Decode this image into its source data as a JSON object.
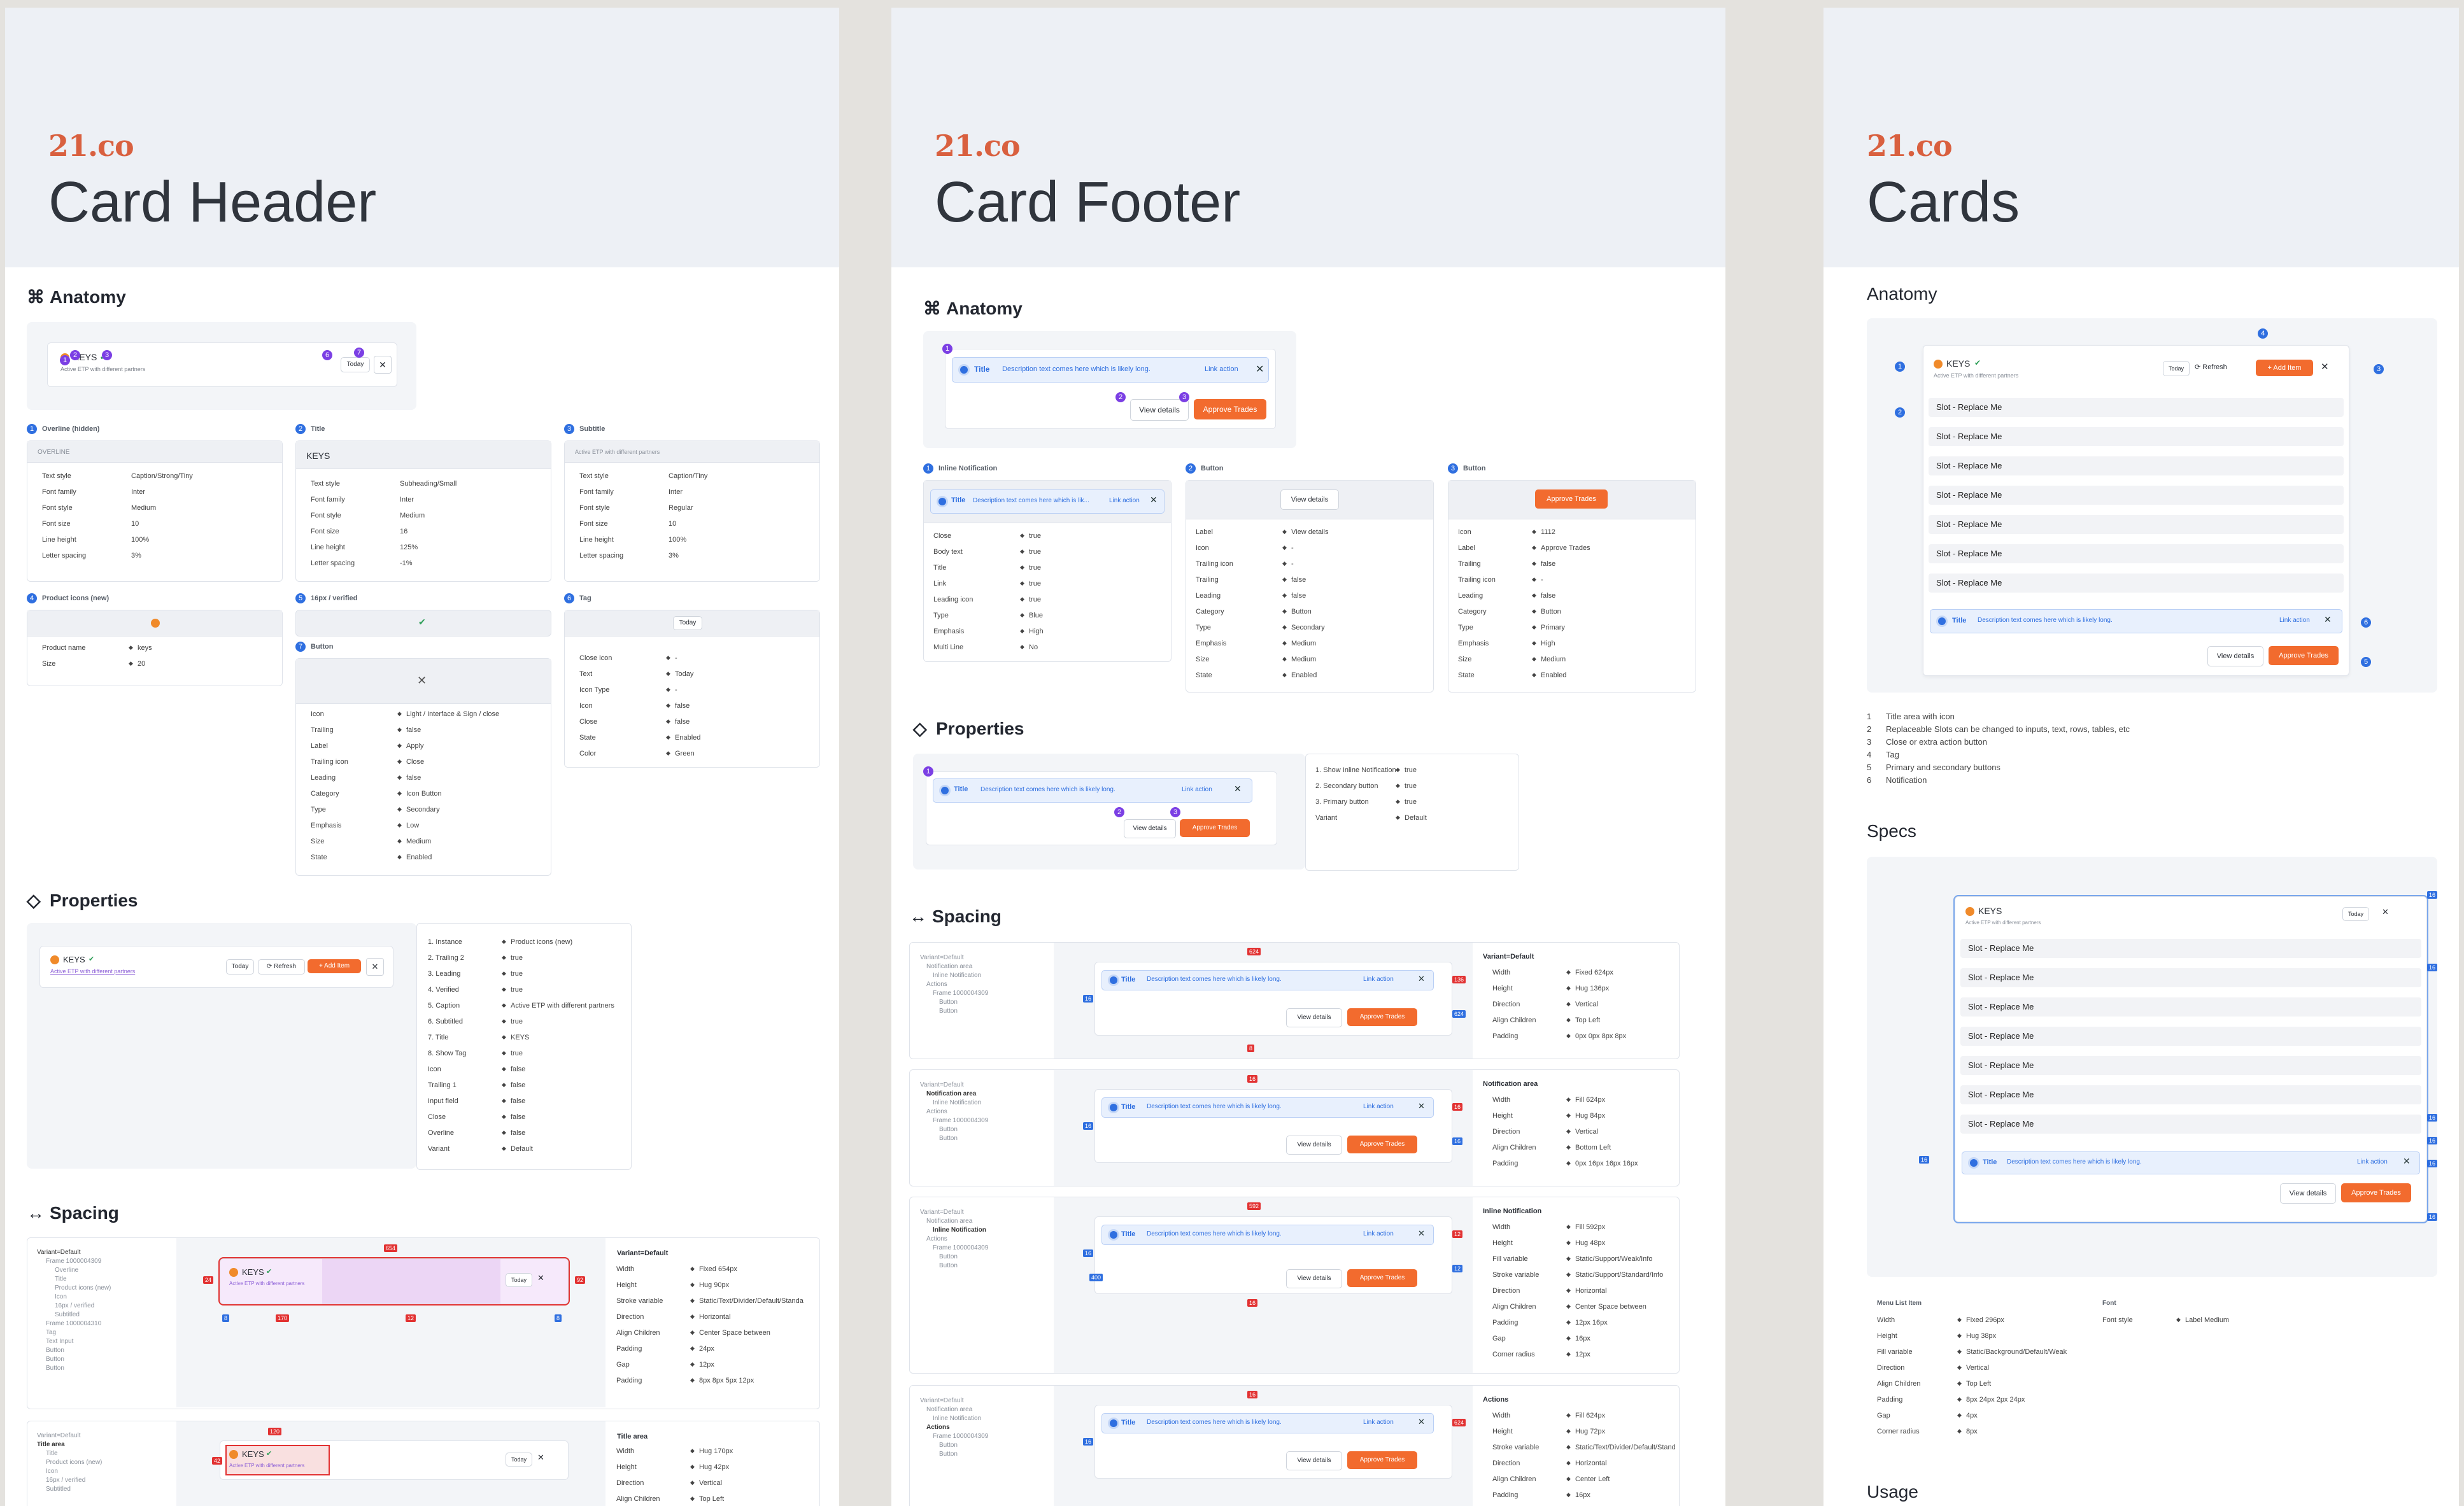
{
  "brand": {
    "logo": "21.co"
  },
  "boards": {
    "header": {
      "title": "Card Header",
      "anatomy": "Anatomy",
      "properties": "Properties",
      "spacing": "Spacing",
      "keys": "KEYS",
      "subtitle": "Active ETP with different partners",
      "today": "Today",
      "refresh": "Refresh",
      "add_item": "+ Add Item",
      "specs": [
        {
          "num": "1",
          "title": "Overline (hidden)",
          "preview": "OVERLINE",
          "rows": [
            [
              "Text style",
              "Caption/Strong/Tiny"
            ],
            [
              "Font family",
              "Inter"
            ],
            [
              "Font style",
              "Medium"
            ],
            [
              "Font size",
              "10"
            ],
            [
              "Line height",
              "100%"
            ],
            [
              "Letter spacing",
              "3%"
            ]
          ]
        },
        {
          "num": "2",
          "title": "Title",
          "preview": "KEYS",
          "rows": [
            [
              "Text style",
              "Subheading/Small"
            ],
            [
              "Font family",
              "Inter"
            ],
            [
              "Font style",
              "Medium"
            ],
            [
              "Font size",
              "16"
            ],
            [
              "Line height",
              "125%"
            ],
            [
              "Letter spacing",
              "-1%"
            ]
          ]
        },
        {
          "num": "3",
          "title": "Subtitle",
          "preview": "Active ETP with different partners",
          "rows": [
            [
              "Text style",
              "Caption/Tiny"
            ],
            [
              "Font family",
              "Inter"
            ],
            [
              "Font style",
              "Regular"
            ],
            [
              "Font size",
              "10"
            ],
            [
              "Line height",
              "100%"
            ],
            [
              "Letter spacing",
              "3%"
            ]
          ]
        }
      ],
      "product_icons": {
        "num": "4",
        "title": "Product icons (new)",
        "rows": [
          [
            "Product name",
            "keys"
          ],
          [
            "Size",
            "20"
          ]
        ]
      },
      "verified": {
        "num": "5",
        "title": "16px / verified"
      },
      "button": {
        "num": "7",
        "title": "Button",
        "rows": [
          [
            "Icon",
            "Light / Interface & Sign / close"
          ],
          [
            "Trailing",
            "false"
          ],
          [
            "Label",
            "Apply"
          ],
          [
            "Trailing icon",
            "Close"
          ],
          [
            "Leading",
            "false"
          ],
          [
            "Category",
            "Icon Button"
          ],
          [
            "Type",
            "Secondary"
          ],
          [
            "Emphasis",
            "Low"
          ],
          [
            "Size",
            "Medium"
          ],
          [
            "State",
            "Enabled"
          ]
        ]
      },
      "tag": {
        "num": "6",
        "title": "Tag",
        "preview": "Today",
        "rows": [
          [
            "Close icon",
            "-"
          ],
          [
            "Text",
            "Today"
          ],
          [
            "Icon Type",
            "-"
          ],
          [
            "Icon",
            "false"
          ],
          [
            "Close",
            "false"
          ],
          [
            "State",
            "Enabled"
          ],
          [
            "Color",
            "Green"
          ]
        ]
      },
      "props": [
        [
          "1. Instance",
          "Product icons (new)"
        ],
        [
          "2. Trailing 2",
          "true"
        ],
        [
          "3. Leading",
          "true"
        ],
        [
          "4. Verified",
          "true"
        ],
        [
          "5. Caption",
          "Active ETP with different partners"
        ],
        [
          "6. Subtitled",
          "true"
        ],
        [
          "7. Title",
          "KEYS"
        ],
        [
          "8. Show Tag",
          "true"
        ],
        [
          "Icon",
          "false"
        ],
        [
          "Trailing 1",
          "false"
        ],
        [
          "Input field",
          "false"
        ],
        [
          "Close",
          "false"
        ],
        [
          "Overline",
          "false"
        ],
        [
          "Variant",
          "Default"
        ]
      ],
      "spacing_variant": "Variant=Default",
      "spacing_layers": [
        "Variant=Default",
        "Frame 1000004309",
        "Overline",
        "Title",
        "Product icons (new)",
        "Icon",
        "16px / verified",
        "Subtitled",
        "Frame 1000004310",
        "Tag",
        "Text Input",
        "Button",
        "Button",
        "Button"
      ],
      "spacing_rows": [
        [
          "Width",
          "Fixed 654px"
        ],
        [
          "Height",
          "Hug 90px"
        ],
        [
          "Stroke variable",
          "Static/Text/Divider/Default/Standa"
        ],
        [
          "Direction",
          "Horizontal"
        ],
        [
          "Align Children",
          "Center Space between"
        ],
        [
          "Padding",
          "24px"
        ],
        [
          "Gap",
          "12px"
        ],
        [
          "Padding",
          "8px 8px 5px 12px"
        ]
      ],
      "title_area": "Title area",
      "title_layers": [
        "Variant=Default",
        "Title area",
        "Title",
        "Product icons (new)",
        "Icon",
        "16px / verified",
        "Subtitled"
      ],
      "title_rows": [
        [
          "Width",
          "Hug 170px"
        ],
        [
          "Height",
          "Hug 42px"
        ],
        [
          "Direction",
          "Vertical"
        ],
        [
          "Align Children",
          "Top Left"
        ]
      ],
      "badges": {
        "654": "654",
        "24": "24",
        "92": "92",
        "170": "170",
        "8": "8",
        "12": "12",
        "120": "120",
        "42": "42"
      }
    },
    "footer": {
      "title": "Card Footer",
      "anatomy": "Anatomy",
      "properties": "Properties",
      "spacing": "Spacing",
      "notif_title": "Title",
      "notif_desc": "Description text comes here which is likely long.",
      "notif_desc_short": "Description text comes here which is lik...",
      "link": "Link action",
      "view": "View details",
      "approve": "Approve Trades",
      "specs": [
        {
          "num": "1",
          "title": "Inline Notification",
          "rows": [
            [
              "Close",
              "true"
            ],
            [
              "Body text",
              "true"
            ],
            [
              "Title",
              "true"
            ],
            [
              "Link",
              "true"
            ],
            [
              "Leading icon",
              "true"
            ],
            [
              "Type",
              "Blue"
            ],
            [
              "Emphasis",
              "High"
            ],
            [
              "Multi Line",
              "No"
            ]
          ]
        },
        {
          "num": "2",
          "title": "Button",
          "rows": [
            [
              "Label",
              "View details"
            ],
            [
              "Icon",
              "-"
            ],
            [
              "Trailing icon",
              "-"
            ],
            [
              "Trailing",
              "false"
            ],
            [
              "Leading",
              "false"
            ],
            [
              "Category",
              "Button"
            ],
            [
              "Type",
              "Secondary"
            ],
            [
              "Emphasis",
              "Medium"
            ],
            [
              "Size",
              "Medium"
            ],
            [
              "State",
              "Enabled"
            ]
          ]
        },
        {
          "num": "3",
          "title": "Button",
          "rows": [
            [
              "Icon",
              "1112"
            ],
            [
              "Label",
              "Approve Trades"
            ],
            [
              "Trailing",
              "false"
            ],
            [
              "Trailing icon",
              "-"
            ],
            [
              "Leading",
              "false"
            ],
            [
              "Category",
              "Button"
            ],
            [
              "Type",
              "Primary"
            ],
            [
              "Emphasis",
              "High"
            ],
            [
              "Size",
              "Medium"
            ],
            [
              "State",
              "Enabled"
            ]
          ]
        }
      ],
      "props": [
        [
          "1. Show Inline Notification",
          "true"
        ],
        [
          "2. Secondary button",
          "true"
        ],
        [
          "3. Primary button",
          "true"
        ],
        [
          "Variant",
          "Default"
        ]
      ],
      "blocks": [
        {
          "layers": [
            "Variant=Default",
            "Notification area",
            "Inline Notification",
            "Actions",
            "Frame 1000004309",
            "Button",
            "Button"
          ],
          "head": "Variant=Default",
          "rows": [
            [
              "Width",
              "Fixed 624px"
            ],
            [
              "Height",
              "Hug 136px"
            ],
            [
              "Direction",
              "Vertical"
            ],
            [
              "Align Children",
              "Top Left"
            ],
            [
              "Padding",
              "0px 0px 8px 8px"
            ]
          ],
          "tags": [
            "624",
            "16",
            "136",
            "624",
            "8"
          ]
        },
        {
          "layers": [
            "Variant=Default",
            "Notification area",
            "Inline Notification",
            "Actions",
            "Frame 1000004309",
            "Button",
            "Button"
          ],
          "head": "Notification area",
          "rows": [
            [
              "Width",
              "Fill 624px"
            ],
            [
              "Height",
              "Hug 84px"
            ],
            [
              "Direction",
              "Vertical"
            ],
            [
              "Align Children",
              "Bottom Left"
            ],
            [
              "Padding",
              "0px 16px 16px 16px"
            ]
          ],
          "tags": [
            "16",
            "16",
            "16",
            "16"
          ]
        },
        {
          "layers": [
            "Variant=Default",
            "Notification area",
            "Inline Notification",
            "Actions",
            "Frame 1000004309",
            "Button",
            "Button"
          ],
          "head": "Inline Notification",
          "rows": [
            [
              "Width",
              "Fill 592px"
            ],
            [
              "Height",
              "Hug 48px"
            ],
            [
              "Fill variable",
              "Static/Support/Weak/Info"
            ],
            [
              "Stroke variable",
              "Static/Support/Standard/Info"
            ],
            [
              "Direction",
              "Horizontal"
            ],
            [
              "Align Children",
              "Center Space between"
            ],
            [
              "Padding",
              "12px 16px"
            ],
            [
              "Gap",
              "16px"
            ],
            [
              "Corner radius",
              "12px"
            ]
          ],
          "tags": [
            "592",
            "16",
            "12",
            "12",
            "16",
            "400"
          ]
        },
        {
          "layers": [
            "Variant=Default",
            "Notification area",
            "Inline Notification",
            "Actions",
            "Frame 1000004309",
            "Button",
            "Button"
          ],
          "head": "Actions",
          "rows": [
            [
              "Width",
              "Fill 624px"
            ],
            [
              "Height",
              "Hug 72px"
            ],
            [
              "Stroke variable",
              "Static/Text/Divider/Default/Stand"
            ],
            [
              "Direction",
              "Horizontal"
            ],
            [
              "Align Children",
              "Center Left"
            ],
            [
              "Padding",
              "16px"
            ],
            [
              "Gap",
              "8px"
            ]
          ],
          "tags": [
            "16",
            "16",
            "624"
          ]
        }
      ]
    },
    "cards": {
      "title": "Cards",
      "anatomy": "Anatomy",
      "specs": "Specs",
      "usage": "Usage",
      "keys": "KEYS",
      "subtitle": "Active ETP with different partners",
      "today": "Today",
      "refresh": "Refresh",
      "add_item": "+ Add Item",
      "slot": "Slot - Replace Me",
      "notif_title": "Title",
      "notif_desc": "Description text comes here which is likely long.",
      "link": "Link action",
      "view": "View details",
      "approve": "Approve Trades",
      "legend": [
        [
          "1",
          "Title area with icon"
        ],
        [
          "2",
          "Replaceable Slots can be changed to inputs, text, rows, tables, etc"
        ],
        [
          "3",
          "Close or extra action button"
        ],
        [
          "4",
          "Tag"
        ],
        [
          "5",
          "Primary and secondary buttons"
        ],
        [
          "6",
          "Notification"
        ]
      ],
      "menu_list_item": "Menu List Item",
      "font_head": "Font",
      "menu_rows": [
        [
          "Width",
          "Fixed 296px"
        ],
        [
          "Height",
          "Hug 38px"
        ],
        [
          "Fill variable",
          "Static/Background/Default/Weak"
        ],
        [
          "Direction",
          "Vertical"
        ],
        [
          "Align Children",
          "Top Left"
        ],
        [
          "Padding",
          "8px 24px 2px 24px"
        ],
        [
          "Gap",
          "4px"
        ],
        [
          "Corner radius",
          "8px"
        ]
      ],
      "font_rows": [
        [
          "Font style",
          "Label Medium"
        ]
      ],
      "spec_tags": [
        "16",
        "16",
        "16",
        "16",
        "16",
        "16",
        "16"
      ]
    }
  }
}
